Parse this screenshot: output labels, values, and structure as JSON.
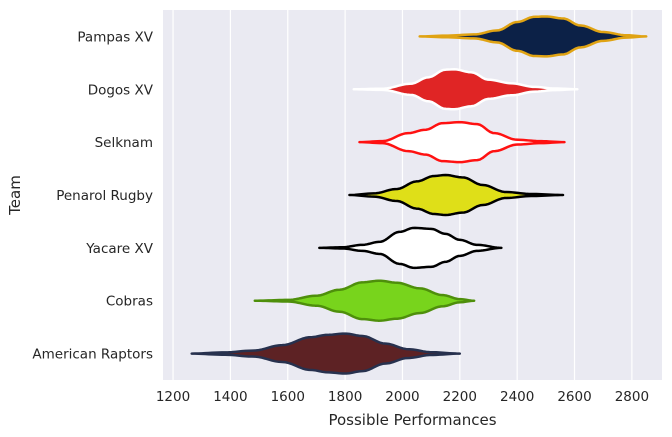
{
  "chart_data": {
    "type": "violin",
    "orientation": "horizontal",
    "xlabel": "Possible Performances",
    "ylabel": "Team",
    "xlim": [
      1165,
      2905
    ],
    "xticks": [
      1200,
      1400,
      1600,
      1800,
      2000,
      2200,
      2400,
      2600,
      2800
    ],
    "grid": true,
    "background": "#eaeaf2",
    "categories": [
      "Pampas XV",
      "Dogos XV",
      "Selknam",
      "Penarol Rugby",
      "Yacare XV",
      "Cobras",
      "American Raptors"
    ],
    "series": [
      {
        "name": "Pampas XV",
        "fill": "#0c2147",
        "stroke": "#e0a313",
        "range": [
          2060,
          2850
        ],
        "profile": [
          [
            2060,
            0
          ],
          [
            2150,
            0.04
          ],
          [
            2250,
            0.1
          ],
          [
            2330,
            0.3
          ],
          [
            2400,
            0.72
          ],
          [
            2460,
            0.98
          ],
          [
            2500,
            1.0
          ],
          [
            2560,
            0.9
          ],
          [
            2620,
            0.55
          ],
          [
            2700,
            0.22
          ],
          [
            2780,
            0.06
          ],
          [
            2850,
            0
          ]
        ]
      },
      {
        "name": "Dogos XV",
        "fill": "#e02525",
        "stroke": "#ffffff",
        "range": [
          1830,
          2610
        ],
        "profile": [
          [
            1830,
            0
          ],
          [
            1930,
            0.03
          ],
          [
            2030,
            0.28
          ],
          [
            2090,
            0.6
          ],
          [
            2150,
            0.98
          ],
          [
            2180,
            1.0
          ],
          [
            2240,
            0.85
          ],
          [
            2300,
            0.48
          ],
          [
            2380,
            0.3
          ],
          [
            2460,
            0.12
          ],
          [
            2530,
            0.04
          ],
          [
            2610,
            0
          ]
        ]
      },
      {
        "name": "Selknam",
        "fill": "#ffffff",
        "stroke": "#ff1111",
        "range": [
          1850,
          2565
        ],
        "profile": [
          [
            1850,
            0
          ],
          [
            1930,
            0.05
          ],
          [
            2020,
            0.45
          ],
          [
            2080,
            0.62
          ],
          [
            2140,
            0.95
          ],
          [
            2200,
            1.0
          ],
          [
            2260,
            0.9
          ],
          [
            2320,
            0.45
          ],
          [
            2400,
            0.12
          ],
          [
            2480,
            0.05
          ],
          [
            2565,
            0
          ]
        ]
      },
      {
        "name": "Penarol Rugby",
        "fill": "#dfdf18",
        "stroke": "#000000",
        "range": [
          1815,
          2560
        ],
        "profile": [
          [
            1815,
            0
          ],
          [
            1900,
            0.08
          ],
          [
            1980,
            0.3
          ],
          [
            2050,
            0.68
          ],
          [
            2110,
            0.95
          ],
          [
            2150,
            1.0
          ],
          [
            2210,
            0.88
          ],
          [
            2280,
            0.5
          ],
          [
            2360,
            0.15
          ],
          [
            2450,
            0.05
          ],
          [
            2560,
            0
          ]
        ]
      },
      {
        "name": "Yacare XV",
        "fill": "#ffffff",
        "stroke": "#000000",
        "range": [
          1710,
          2345
        ],
        "profile": [
          [
            1710,
            0
          ],
          [
            1790,
            0.03
          ],
          [
            1860,
            0.15
          ],
          [
            1920,
            0.3
          ],
          [
            1990,
            0.8
          ],
          [
            2040,
            1.0
          ],
          [
            2100,
            0.95
          ],
          [
            2150,
            0.7
          ],
          [
            2200,
            0.4
          ],
          [
            2260,
            0.15
          ],
          [
            2345,
            0
          ]
        ]
      },
      {
        "name": "Cobras",
        "fill": "#78d41c",
        "stroke": "#4e8f0b",
        "range": [
          1485,
          2250
        ],
        "profile": [
          [
            1485,
            0
          ],
          [
            1600,
            0.04
          ],
          [
            1700,
            0.25
          ],
          [
            1780,
            0.55
          ],
          [
            1860,
            0.92
          ],
          [
            1920,
            1.0
          ],
          [
            1980,
            0.9
          ],
          [
            2060,
            0.62
          ],
          [
            2140,
            0.28
          ],
          [
            2200,
            0.08
          ],
          [
            2250,
            0
          ]
        ]
      },
      {
        "name": "American Raptors",
        "fill": "#5d2224",
        "stroke": "#27314e",
        "range": [
          1265,
          2200
        ],
        "profile": [
          [
            1265,
            0
          ],
          [
            1380,
            0.06
          ],
          [
            1480,
            0.15
          ],
          [
            1580,
            0.42
          ],
          [
            1680,
            0.82
          ],
          [
            1740,
            0.94
          ],
          [
            1800,
            1.0
          ],
          [
            1860,
            0.88
          ],
          [
            1940,
            0.5
          ],
          [
            2020,
            0.22
          ],
          [
            2100,
            0.07
          ],
          [
            2200,
            0
          ]
        ]
      }
    ]
  }
}
